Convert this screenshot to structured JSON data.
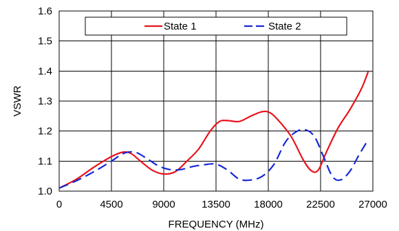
{
  "chart_data": {
    "type": "line",
    "title": "",
    "xlabel": "FREQUENCY (MHz)",
    "ylabel": "VSWR",
    "xlim": [
      0,
      27000
    ],
    "ylim": [
      1.0,
      1.6
    ],
    "x_ticks": [
      0,
      4500,
      9000,
      13500,
      18000,
      22500,
      27000
    ],
    "x_tick_labels": [
      "0",
      "4500",
      "9000",
      "13500",
      "18000",
      "22500",
      "27000"
    ],
    "y_ticks": [
      1.0,
      1.1,
      1.2,
      1.3,
      1.4,
      1.5,
      1.6
    ],
    "y_tick_labels": [
      "1.0",
      "1.1",
      "1.2",
      "1.3",
      "1.4",
      "1.5",
      "1.6"
    ],
    "grid": true,
    "legend_position": "top",
    "series": [
      {
        "name": "State 1",
        "color": "#e8121b",
        "dash": "solid",
        "x": [
          0,
          1500,
          3000,
          4500,
          5500,
          6200,
          7000,
          8000,
          9000,
          10000,
          11000,
          12000,
          13000,
          13800,
          14500,
          15500,
          16500,
          17500,
          18200,
          19000,
          20000,
          21000,
          21700,
          22300,
          23000,
          24000,
          25000,
          26000,
          26600
        ],
        "y": [
          1.01,
          1.04,
          1.08,
          1.115,
          1.13,
          1.125,
          1.1,
          1.07,
          1.057,
          1.065,
          1.1,
          1.14,
          1.2,
          1.232,
          1.235,
          1.232,
          1.25,
          1.265,
          1.26,
          1.23,
          1.18,
          1.105,
          1.068,
          1.07,
          1.13,
          1.21,
          1.27,
          1.34,
          1.398
        ]
      },
      {
        "name": "State 2",
        "color": "#1428d8",
        "dash": "dashed",
        "x": [
          0,
          1500,
          3000,
          4500,
          5500,
          6500,
          7500,
          8500,
          9500,
          10500,
          11500,
          12500,
          13500,
          14500,
          15500,
          16500,
          17500,
          18500,
          19500,
          20500,
          21300,
          22000,
          22700,
          23500,
          24200,
          25000,
          25800,
          26500
        ],
        "y": [
          1.01,
          1.035,
          1.065,
          1.1,
          1.125,
          1.13,
          1.11,
          1.085,
          1.072,
          1.072,
          1.082,
          1.088,
          1.09,
          1.07,
          1.04,
          1.037,
          1.05,
          1.09,
          1.165,
          1.2,
          1.203,
          1.18,
          1.12,
          1.05,
          1.037,
          1.065,
          1.12,
          1.165
        ]
      }
    ]
  }
}
